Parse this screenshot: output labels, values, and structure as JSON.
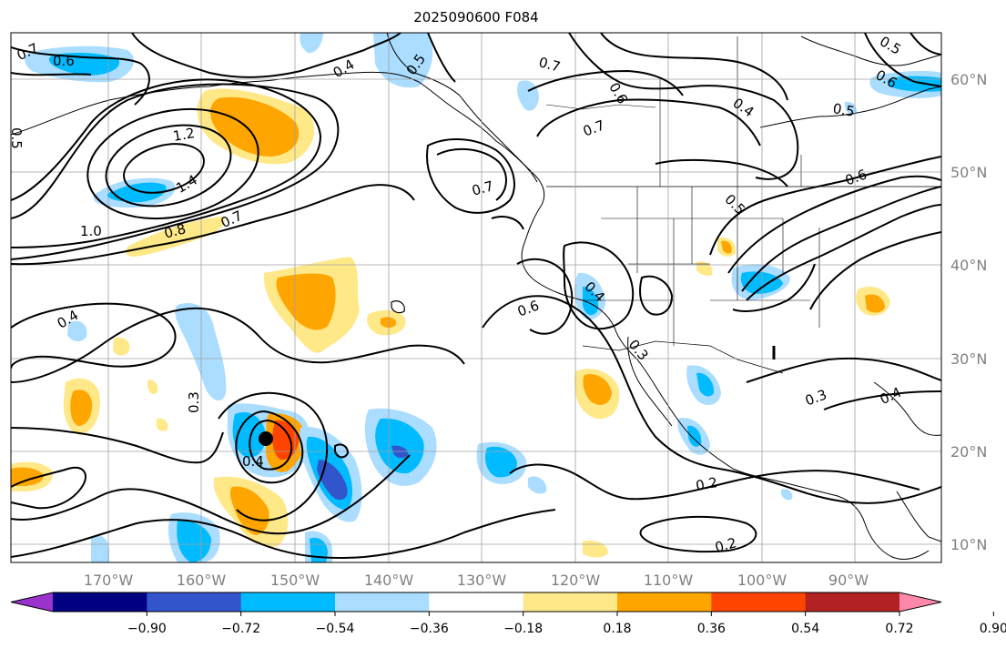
{
  "title": "2025090600 F084",
  "lat_labels": [
    "60°N",
    "50°N",
    "40°N",
    "30°N",
    "20°N",
    "10°N"
  ],
  "lon_labels": [
    "170°W",
    "160°W",
    "150°W",
    "140°W",
    "130°W",
    "120°W",
    "110°W",
    "100°W",
    "90°W"
  ],
  "colorbar": {
    "colors": [
      "#9933cc",
      "#000080",
      "#3355cc",
      "#00bbff",
      "#aaddff",
      "#ffffff",
      "#ffe888",
      "#ffa500",
      "#ff4400",
      "#b22222",
      "#ff88aa"
    ],
    "tick_labels": [
      "−0.90",
      "−0.72",
      "−0.54",
      "−0.36",
      "−0.18",
      "0.18",
      "0.36",
      "0.54",
      "0.72",
      "0.90"
    ]
  },
  "contour_labels": [
    {
      "text": "0.7"
    },
    {
      "text": "0.6"
    },
    {
      "text": "0.4"
    },
    {
      "text": "0.5"
    },
    {
      "text": "0.7"
    },
    {
      "text": "0.6"
    },
    {
      "text": "0.7"
    },
    {
      "text": "0.4"
    },
    {
      "text": "1.2"
    },
    {
      "text": "1.4"
    },
    {
      "text": "1.0"
    },
    {
      "text": "0.8"
    },
    {
      "text": "0.7"
    },
    {
      "text": "0.7"
    },
    {
      "text": "0.5"
    },
    {
      "text": "0.6"
    },
    {
      "text": "0.6"
    },
    {
      "text": "0.5"
    },
    {
      "text": "0.4"
    },
    {
      "text": "0.4"
    },
    {
      "text": "0.3"
    },
    {
      "text": "0.3"
    },
    {
      "text": "0.4"
    },
    {
      "text": "0.3"
    },
    {
      "text": "0.4"
    },
    {
      "text": "0.2"
    },
    {
      "text": "0.2"
    },
    {
      "text": "0.5"
    },
    {
      "text": "0.6"
    },
    {
      "text": "0.5"
    }
  ]
}
